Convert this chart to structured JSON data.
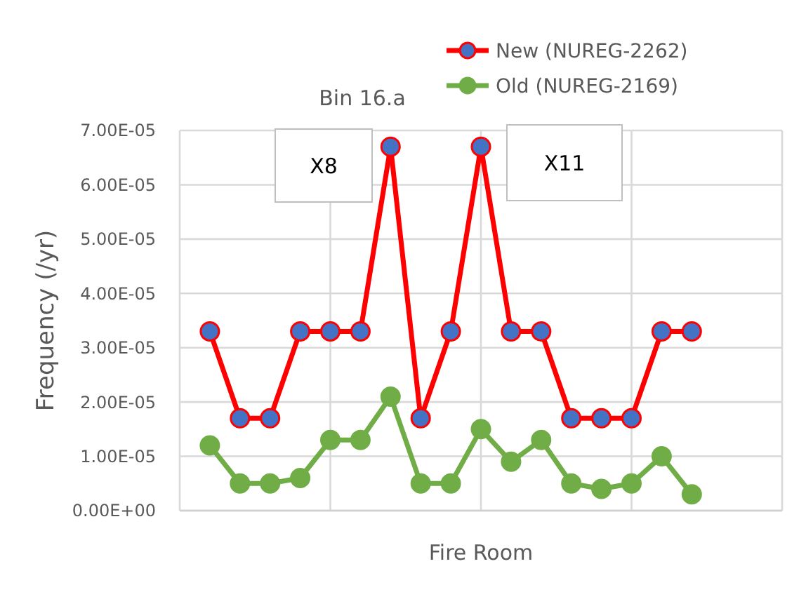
{
  "chart_data": {
    "type": "line",
    "title": "Bin 16.a",
    "xlabel": "Fire Room",
    "ylabel": "Frequency (/yr)",
    "annotations": [
      "X8",
      "X11"
    ],
    "categories": [
      null,
      null,
      null,
      null,
      null,
      null,
      null,
      null,
      null,
      null,
      null,
      null,
      null,
      null,
      null,
      null,
      null
    ],
    "ylim": [
      0,
      7e-05
    ],
    "yticks": [
      {
        "value": 0,
        "label": "0.00E+00"
      },
      {
        "value": 1e-05,
        "label": "1.00E-05"
      },
      {
        "value": 2e-05,
        "label": "2.00E-05"
      },
      {
        "value": 3e-05,
        "label": "3.00E-05"
      },
      {
        "value": 4e-05,
        "label": "4.00E-05"
      },
      {
        "value": 5e-05,
        "label": "5.00E-05"
      },
      {
        "value": 6e-05,
        "label": "6.00E-05"
      },
      {
        "value": 7e-05,
        "label": "7.00E-05"
      }
    ],
    "tick_labels": "y",
    "grid": true,
    "legend": "top right",
    "marker": "circle",
    "line_style": "solid",
    "series": [
      {
        "name": "New (NUREG-2262)",
        "color": "#ff0000",
        "values": [
          3.3e-05,
          1.7e-05,
          1.7e-05,
          3.3e-05,
          3.3e-05,
          3.3e-05,
          6.7e-05,
          1.7e-05,
          3.3e-05,
          6.7e-05,
          3.3e-05,
          3.3e-05,
          1.7e-05,
          1.7e-05,
          1.7e-05,
          3.3e-05,
          3.3e-05
        ]
      },
      {
        "name": "Old (NUREG-2169)",
        "color": "#70ad47",
        "values": [
          1.2e-05,
          5e-06,
          5e-06,
          6e-06,
          1.3e-05,
          1.3e-05,
          2.1e-05,
          5e-06,
          5e-06,
          1.5e-05,
          9e-06,
          1.3e-05,
          5e-06,
          4e-06,
          5e-06,
          1e-05,
          3e-06
        ]
      }
    ]
  }
}
